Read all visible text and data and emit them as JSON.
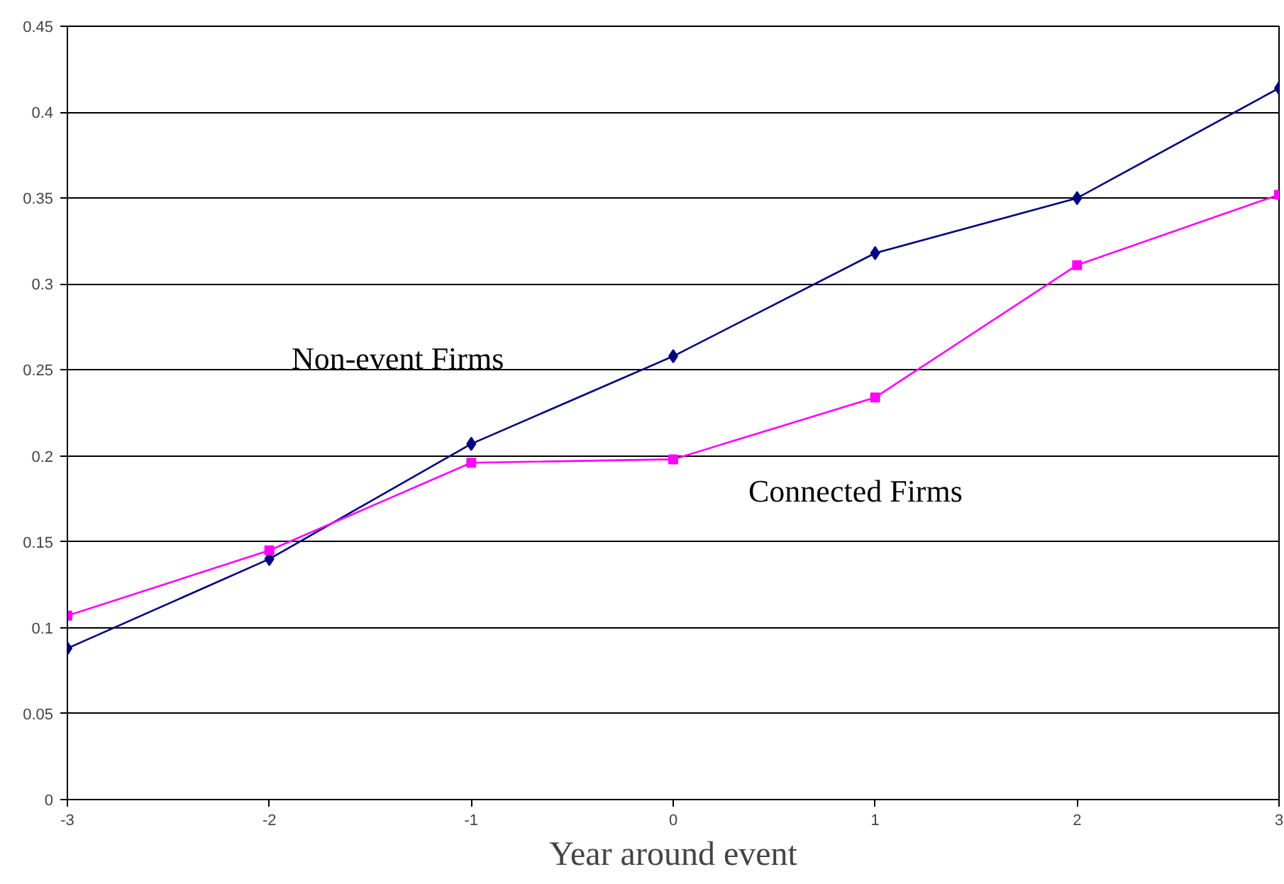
{
  "chart_data": {
    "type": "line",
    "xlabel": "Year around event",
    "x": [
      -3,
      -2,
      -1,
      0,
      1,
      2,
      3
    ],
    "series": [
      {
        "name": "Non-event Firms",
        "color": "#000080",
        "marker": "diamond",
        "values": [
          0.088,
          0.14,
          0.207,
          0.258,
          0.318,
          0.35,
          0.414
        ]
      },
      {
        "name": "Connected Firms",
        "color": "#ff00ff",
        "marker": "square",
        "values": [
          0.107,
          0.145,
          0.196,
          0.198,
          0.234,
          0.311,
          0.352
        ]
      }
    ],
    "xlim": [
      -3,
      3
    ],
    "xticks": [
      -3,
      -2,
      -1,
      0,
      1,
      2,
      3
    ],
    "ylim": [
      0,
      0.45
    ],
    "yticks": [
      0,
      0.05,
      0.1,
      0.15,
      0.2,
      0.25,
      0.3,
      0.35,
      0.4,
      0.45
    ],
    "grid": "y",
    "line_style": "solid"
  }
}
